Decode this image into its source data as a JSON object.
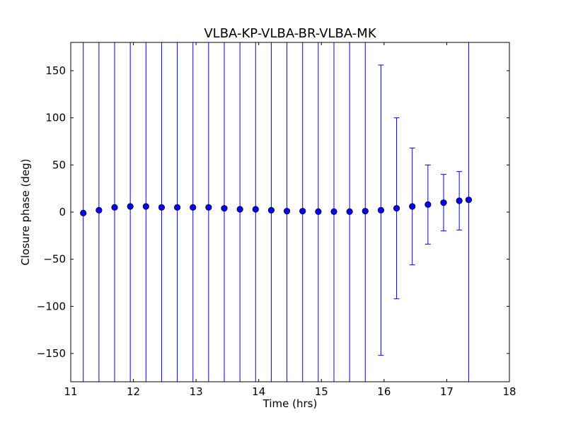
{
  "chart_data": {
    "type": "scatter",
    "title": "VLBA-KP-VLBA-BR-VLBA-MK",
    "xlabel": "Time (hrs)",
    "ylabel": "Closure phase (deg)",
    "xlim": [
      11,
      18
    ],
    "ylim": [
      -180,
      180
    ],
    "xticks": [
      11,
      12,
      13,
      14,
      15,
      16,
      17,
      18
    ],
    "xtick_labels": [
      "11",
      "12",
      "13",
      "14",
      "15",
      "16",
      "17",
      "18"
    ],
    "yticks": [
      -150,
      -100,
      -50,
      0,
      50,
      100,
      150
    ],
    "ytick_labels": [
      "−150",
      "−100",
      "−50",
      "0",
      "50",
      "100",
      "150"
    ],
    "grid": false,
    "legend": "none",
    "marker_color": "#0000ff",
    "errorbar_color": "#0000ff",
    "series": [
      {
        "points": [
          {
            "x": 11.2,
            "y": -1,
            "err": 200
          },
          {
            "x": 11.45,
            "y": 2,
            "err": 200
          },
          {
            "x": 11.7,
            "y": 5,
            "err": 200
          },
          {
            "x": 11.95,
            "y": 6,
            "err": 200
          },
          {
            "x": 12.2,
            "y": 6,
            "err": 200
          },
          {
            "x": 12.45,
            "y": 5,
            "err": 200
          },
          {
            "x": 12.7,
            "y": 5,
            "err": 200
          },
          {
            "x": 12.95,
            "y": 5,
            "err": 200
          },
          {
            "x": 13.2,
            "y": 5,
            "err": 200
          },
          {
            "x": 13.45,
            "y": 4,
            "err": 200
          },
          {
            "x": 13.7,
            "y": 3,
            "err": 200
          },
          {
            "x": 13.95,
            "y": 3,
            "err": 200
          },
          {
            "x": 14.2,
            "y": 2,
            "err": 200
          },
          {
            "x": 14.45,
            "y": 1,
            "err": 200
          },
          {
            "x": 14.7,
            "y": 1,
            "err": 200
          },
          {
            "x": 14.95,
            "y": 0.5,
            "err": 200
          },
          {
            "x": 15.2,
            "y": 0.5,
            "err": 200
          },
          {
            "x": 15.45,
            "y": 0.5,
            "err": 200
          },
          {
            "x": 15.7,
            "y": 1,
            "err": 200
          },
          {
            "x": 15.95,
            "y": 2,
            "err": 154
          },
          {
            "x": 16.2,
            "y": 4,
            "err": 96
          },
          {
            "x": 16.45,
            "y": 6,
            "err": 62
          },
          {
            "x": 16.7,
            "y": 8,
            "err": 42
          },
          {
            "x": 16.95,
            "y": 10,
            "err": 30
          },
          {
            "x": 17.2,
            "y": 12,
            "err": 31
          },
          {
            "x": 17.35,
            "y": 13,
            "err": 200
          }
        ]
      }
    ]
  }
}
